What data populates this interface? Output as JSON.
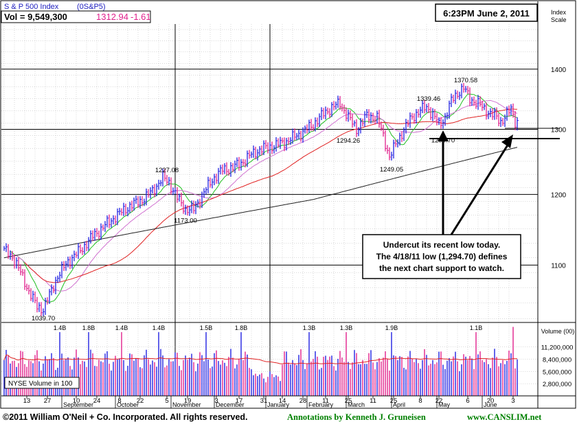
{
  "header": {
    "index_name": "S & P 500 Index",
    "symbol": "(0S&P5)",
    "vol_label": "Vol = 9,549,300",
    "price": "1312.94",
    "change": "-1.61",
    "timestamp": "6:23PM June 2, 2011"
  },
  "colors": {
    "up_bar": "#2020e0",
    "down_bar": "#e0208c",
    "ma50": "#e02020",
    "ma200": "#202020",
    "ma10": "#20c020",
    "ma21": "#d070d0",
    "price_text": "#e0208c",
    "accent_text": "#2020c0",
    "footer_green": "#008000"
  },
  "footer": {
    "copyright": "©2011 William O'Neil + Co. Incorporated. All rights reserved.",
    "annotation": "Annotations by Kenneth J. Gruneisen",
    "site": "www.CANSLIM.net"
  },
  "annotation_box": {
    "line1": "Undercut its recent low today.",
    "line2": "The 4/18/11 low (1,294.70) defines",
    "line3": "the next chart support to watch."
  },
  "volume_legend": "NYSE Volume in 100",
  "chart_data": {
    "type": "bar",
    "title": "S & P 500 Index",
    "price_axis": {
      "label": "Index Scale",
      "ticks": [
        1100,
        1200,
        1300,
        1400
      ],
      "ylim": [
        1025,
        1480
      ],
      "scale": "log"
    },
    "volume_axis": {
      "label": "Volume (00)",
      "ticks": [
        {
          "value": 2800000,
          "label": "2,800,000"
        },
        {
          "value": 5600000,
          "label": "5,600,000"
        },
        {
          "value": 8400000,
          "label": "8,400,000"
        },
        {
          "value": 11200000,
          "label": "11,200,000"
        }
      ],
      "ylim": [
        0,
        16500000
      ]
    },
    "price_labels": [
      {
        "text": "1039.70",
        "value": 1039.7
      },
      {
        "text": "1227.08",
        "value": 1227.08
      },
      {
        "text": "1173.00",
        "value": 1173.0
      },
      {
        "text": "1294.26",
        "value": 1294.26
      },
      {
        "text": "1249.05",
        "value": 1249.05
      },
      {
        "text": "1339.46",
        "value": 1339.46
      },
      {
        "text": "1370.58",
        "value": 1370.58
      },
      {
        "text": "1294.70",
        "value": 1294.7
      }
    ],
    "volume_labels": [
      "1.4B",
      "1.8B",
      "1.4B",
      "1.4B",
      "1.5B",
      "1.8B",
      "1.3B",
      "1.3B",
      "1.9B",
      "1.1B"
    ],
    "months": [
      "September",
      "October",
      "November",
      "December",
      "January",
      "February",
      "March",
      "April",
      "May",
      "June"
    ],
    "x_ticks": [
      "13",
      "27",
      "10",
      "24",
      "8",
      "22",
      "5",
      "19",
      "3",
      "17",
      "31",
      "14",
      "28",
      "11",
      "25",
      "11",
      "25",
      "8",
      "22",
      "6",
      "20",
      "3"
    ],
    "waypoints": [
      [
        0,
        1120
      ],
      [
        4,
        1112
      ],
      [
        8,
        1090
      ],
      [
        12,
        1065
      ],
      [
        16,
        1045
      ],
      [
        19,
        1042
      ],
      [
        22,
        1060
      ],
      [
        26,
        1085
      ],
      [
        31,
        1105
      ],
      [
        37,
        1120
      ],
      [
        43,
        1140
      ],
      [
        49,
        1155
      ],
      [
        55,
        1170
      ],
      [
        61,
        1183
      ],
      [
        67,
        1192
      ],
      [
        72,
        1205
      ],
      [
        77,
        1225
      ],
      [
        80,
        1218
      ],
      [
        84,
        1195
      ],
      [
        88,
        1178
      ],
      [
        92,
        1178
      ],
      [
        96,
        1198
      ],
      [
        101,
        1222
      ],
      [
        106,
        1237
      ],
      [
        111,
        1240
      ],
      [
        116,
        1250
      ],
      [
        121,
        1263
      ],
      [
        126,
        1270
      ],
      [
        131,
        1274
      ],
      [
        137,
        1281
      ],
      [
        143,
        1292
      ],
      [
        149,
        1305
      ],
      [
        154,
        1322
      ],
      [
        159,
        1336
      ],
      [
        163,
        1342
      ],
      [
        167,
        1320
      ],
      [
        171,
        1300
      ],
      [
        176,
        1322
      ],
      [
        181,
        1318
      ],
      [
        184,
        1290
      ],
      [
        187,
        1256
      ],
      [
        190,
        1276
      ],
      [
        194,
        1300
      ],
      [
        198,
        1320
      ],
      [
        202,
        1331
      ],
      [
        205,
        1336
      ],
      [
        208,
        1325
      ],
      [
        211,
        1306
      ],
      [
        214,
        1320
      ],
      [
        217,
        1346
      ],
      [
        221,
        1363
      ],
      [
        223,
        1368
      ],
      [
        226,
        1350
      ],
      [
        230,
        1342
      ],
      [
        234,
        1330
      ],
      [
        238,
        1322
      ],
      [
        241,
        1312
      ],
      [
        244,
        1325
      ],
      [
        246,
        1332
      ],
      [
        248,
        1313
      ]
    ]
  }
}
